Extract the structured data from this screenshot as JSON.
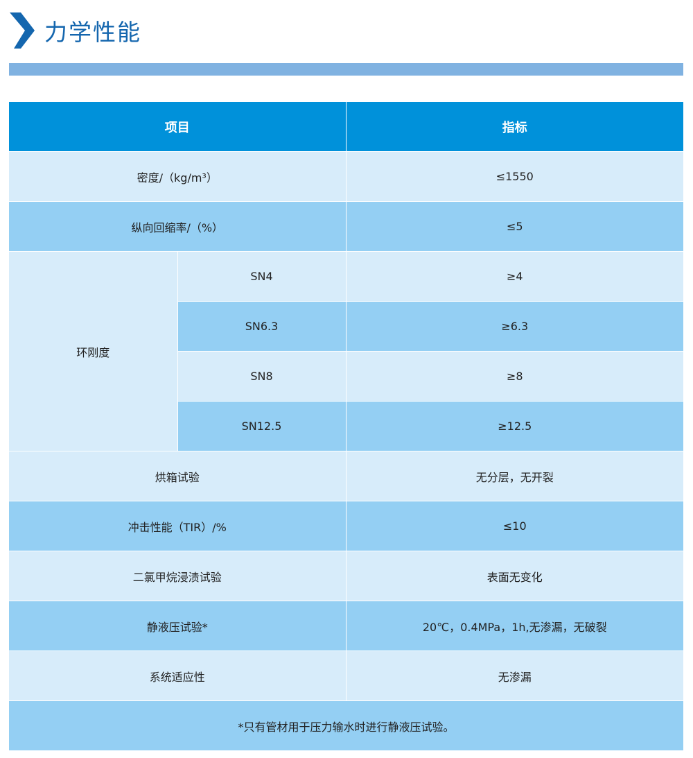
{
  "title": "力学性能",
  "colors": {
    "header": "#0091da",
    "light_row": "#d7ecfa",
    "dark_row": "#94cff3",
    "accent_bar": "#80b2e1",
    "title": "#1466ae"
  },
  "table": {
    "headers": [
      "项目",
      "指标"
    ],
    "rows": [
      {
        "item": "密度/（kg/m³）",
        "value": "≤1550"
      },
      {
        "item": "纵向回缩率/（%）",
        "value": "≤5"
      }
    ],
    "ring": {
      "label": "环刚度",
      "subs": [
        {
          "item": "SN4",
          "value": "≥4"
        },
        {
          "item": "SN6.3",
          "value": "≥6.3"
        },
        {
          "item": "SN8",
          "value": "≥8"
        },
        {
          "item": "SN12.5",
          "value": "≥12.5"
        }
      ]
    },
    "rows2": [
      {
        "item": "烘箱试验",
        "value": "无分层，无开裂"
      },
      {
        "item": "冲击性能（TIR）/%",
        "value": "≤10"
      },
      {
        "item": "二氯甲烷浸渍试验",
        "value": "表面无变化"
      },
      {
        "item": "静液压试验*",
        "value": "20℃，0.4MPa，1h,无渗漏，无破裂"
      },
      {
        "item": "系统适应性",
        "value": "无渗漏"
      }
    ],
    "footnote": "*只有管材用于压力输水时进行静液压试验。"
  }
}
